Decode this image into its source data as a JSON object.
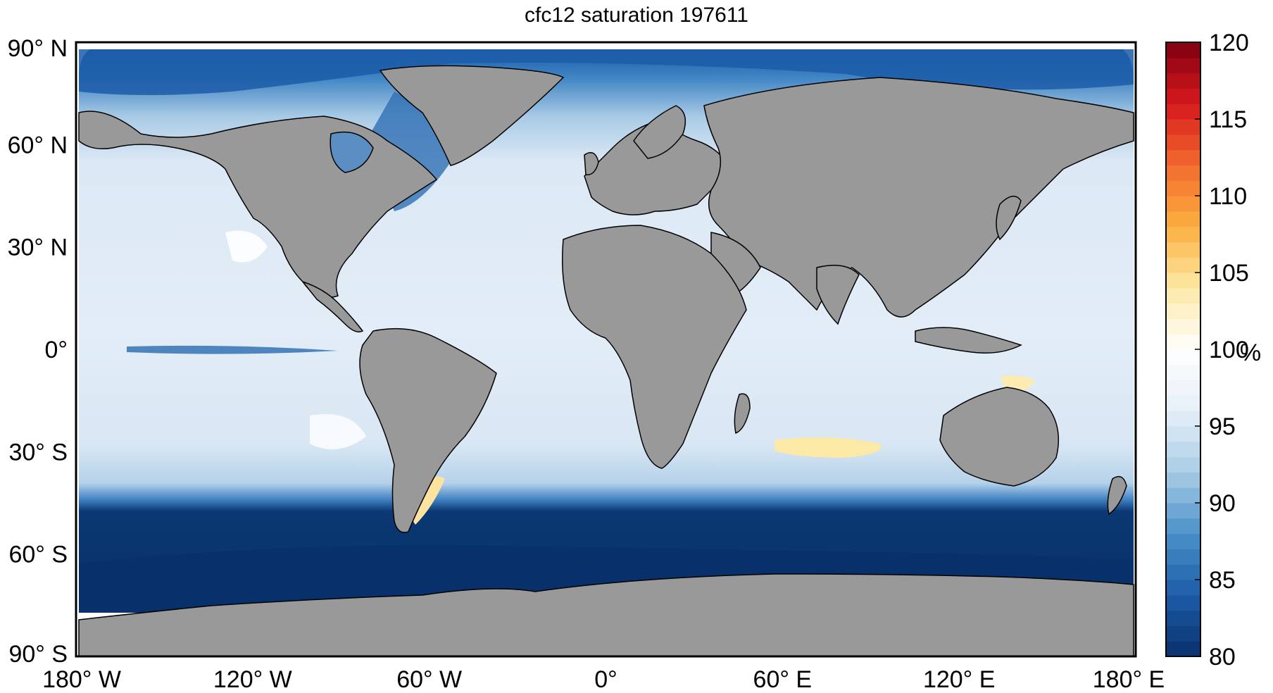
{
  "title": "cfc12 saturation 197611",
  "map": {
    "x_ticks": [
      "180° W",
      "120° W",
      "60° W",
      "0°",
      "60° E",
      "120° E",
      "180° E"
    ],
    "x_tick_values": [
      -180,
      -120,
      -60,
      0,
      60,
      120,
      180
    ],
    "y_ticks": [
      "90° N",
      "60° N",
      "30° N",
      "0°",
      "30° S",
      "60° S",
      "90° S"
    ],
    "y_tick_values": [
      90,
      60,
      30,
      0,
      -30,
      -60,
      -90
    ],
    "xlim": [
      -180,
      180
    ],
    "ylim": [
      -90,
      90
    ],
    "land_color": "#999999",
    "ocean_base_color": "#dde9f5"
  },
  "colorbar": {
    "unit": "%",
    "tick_labels": [
      "120",
      "115",
      "110",
      "105",
      "100",
      "95",
      "90",
      "85",
      "80"
    ],
    "tick_values": [
      120,
      115,
      110,
      105,
      100,
      95,
      90,
      85,
      80
    ],
    "range": [
      80,
      120
    ],
    "colormap": [
      "#08306b",
      "#1c5ca8",
      "#4a90c8",
      "#a9cde6",
      "#e6eff8",
      "#ffffff",
      "#fde9a6",
      "#fbb040",
      "#f26b2e",
      "#d7191c",
      "#7f0010"
    ]
  },
  "chart_data": {
    "type": "heatmap",
    "title": "cfc12 saturation 197611",
    "xlabel": "",
    "ylabel": "",
    "xlim": [
      -180,
      180
    ],
    "ylim": [
      -90,
      90
    ],
    "colorbar_label": "%",
    "colorbar_range": [
      80,
      120
    ],
    "colorbar_ticks": [
      80,
      85,
      90,
      95,
      100,
      105,
      110,
      115,
      120
    ],
    "field_description_regions": [
      {
        "region": "Southern Ocean",
        "value": 80
      },
      {
        "region": "Arctic Ocean",
        "value": 82
      },
      {
        "region": "Tropical Pacific",
        "value": 96
      },
      {
        "region": "Subtropical South Indian",
        "value": 102
      },
      {
        "region": "Patagonian Shelf",
        "value": 103
      },
      {
        "region": "Gulf of Carpentaria",
        "value": 101
      }
    ]
  }
}
